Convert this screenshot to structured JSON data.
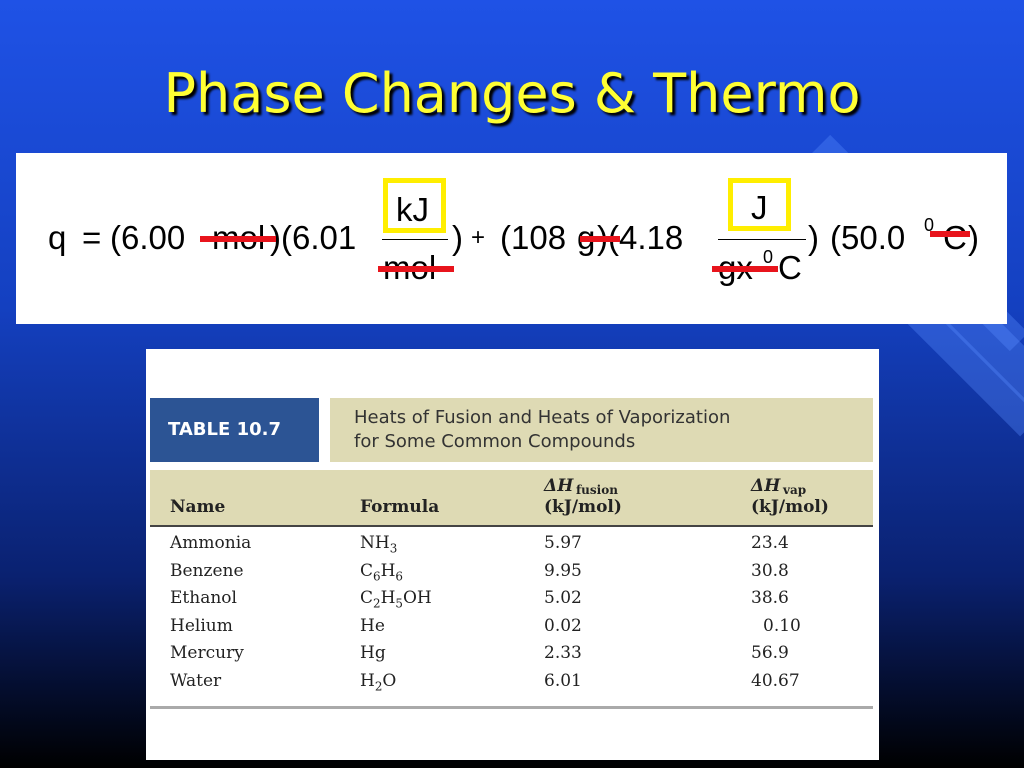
{
  "title": "Phase Changes & Thermo",
  "equation": {
    "tokens": [
      "q",
      "=",
      "(6.00",
      "mol",
      ")(6.01",
      ")",
      "+",
      "(108",
      "g",
      ")(4.18",
      ")",
      "(50.0",
      "0",
      "C",
      ")"
    ],
    "fraction1": {
      "numerator": "kJ",
      "denominator": "mol"
    },
    "fraction2": {
      "numerator": "J",
      "denominator": [
        "gx",
        "0",
        "C"
      ]
    }
  },
  "table": {
    "label": "TABLE 10.7",
    "caption": [
      "Heats of Fusion and Heats of Vaporization",
      "for Some Common Compounds"
    ],
    "headers": [
      {
        "text": "Name"
      },
      {
        "text": "Formula"
      },
      {
        "symbol": "ΔH",
        "sub": "fusion",
        "unit": "(kJ/mol)"
      },
      {
        "symbol": "ΔH",
        "sub": "vap",
        "unit": "(kJ/mol)"
      }
    ],
    "rows": [
      [
        "Ammonia",
        "NH3",
        "5.97",
        "23.4"
      ],
      [
        "Benzene",
        "C6H6",
        "9.95",
        "30.8"
      ],
      [
        "Ethanol",
        "C2H5OH",
        "5.02",
        "38.6"
      ],
      [
        "Helium",
        "He",
        "0.02",
        "0.10"
      ],
      [
        "Mercury",
        "Hg",
        "2.33",
        "56.9"
      ],
      [
        "Water",
        "H2O",
        "6.01",
        "40.67"
      ]
    ]
  }
}
